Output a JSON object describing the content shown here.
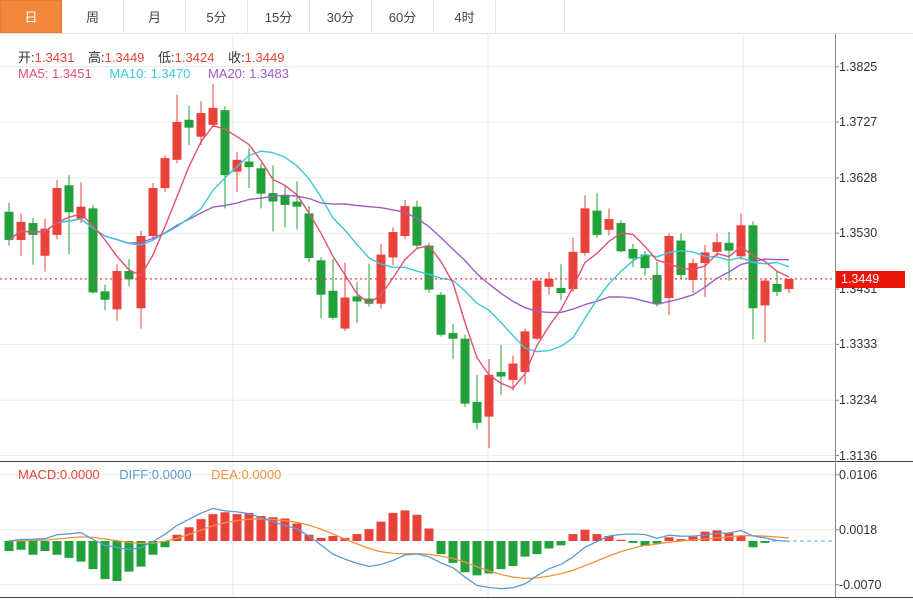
{
  "tabs": {
    "items": [
      {
        "label": "日",
        "selected": true
      },
      {
        "label": "周",
        "selected": false
      },
      {
        "label": "月",
        "selected": false
      },
      {
        "label": "5分",
        "selected": false
      },
      {
        "label": "15分",
        "selected": false
      },
      {
        "label": "30分",
        "selected": false
      },
      {
        "label": "60分",
        "selected": false
      },
      {
        "label": "4时",
        "selected": false
      }
    ]
  },
  "legend_ohlc": {
    "open_label": "开:",
    "open": "1.3431",
    "high_label": "高:",
    "high": "1.3449",
    "low_label": "低:",
    "low": "1.3424",
    "close_label": "收:",
    "close": "1.3449"
  },
  "legend_ma": {
    "ma5_label": "MA5:",
    "ma5": "1.3451",
    "ma10_label": "MA10:",
    "ma10": "1.3470",
    "ma20_label": "MA20:",
    "ma20": "1.3483"
  },
  "legend_macd": {
    "macd_label": "MACD:",
    "macd": "0.0000",
    "diff_label": "DIFF:",
    "diff": "0.0000",
    "dea_label": "DEA:",
    "dea": "0.0000"
  },
  "price_axis": {
    "last_price": "1.3449"
  },
  "colors": {
    "up_red": "#e8423a",
    "down_green": "#22a13b",
    "tab_orange": "#f0873c",
    "price_box_bg": "#e81508",
    "price_dotted_line": "#f23c46",
    "ma5": "#e25170",
    "ma10": "#3fc6d8",
    "ma20": "#a05cc5",
    "diff_blue": "#5b9bd5",
    "dea_orange": "#f0923f",
    "grid": "#ececec",
    "axis_text": "#333333"
  },
  "chart_data": {
    "type": "candlestick",
    "title": "Daily candlestick chart with MA5/MA10/MA20 overlays and MACD sub-panel",
    "legend_position": "top-left",
    "grid": true,
    "price_panel": {
      "ylabel": "price",
      "y_ticks": [
        1.3825,
        1.3727,
        1.3628,
        1.353,
        1.3431,
        1.3333,
        1.3234,
        1.3136
      ],
      "ylim": [
        1.311,
        1.388
      ],
      "last_price": 1.3449,
      "open": 1.3431,
      "high": 1.3449,
      "low": 1.3424,
      "close": 1.3449,
      "candles_ohlc": [
        [
          1.3568,
          1.3584,
          1.3508,
          1.3518
        ],
        [
          1.3518,
          1.3565,
          1.349,
          1.355
        ],
        [
          1.3548,
          1.3557,
          1.3474,
          1.3527
        ],
        [
          1.349,
          1.3556,
          1.3462,
          1.3538
        ],
        [
          1.3527,
          1.3624,
          1.3519,
          1.361
        ],
        [
          1.3615,
          1.3633,
          1.3493,
          1.3567
        ],
        [
          1.3556,
          1.362,
          1.3548,
          1.3577
        ],
        [
          1.3574,
          1.358,
          1.3423,
          1.3425
        ],
        [
          1.3427,
          1.3439,
          1.3394,
          1.3412
        ],
        [
          1.3395,
          1.3475,
          1.3375,
          1.3463
        ],
        [
          1.3463,
          1.3484,
          1.3436,
          1.3448
        ],
        [
          1.3397,
          1.3534,
          1.3361,
          1.3525
        ],
        [
          1.3525,
          1.3619,
          1.3519,
          1.361
        ],
        [
          1.361,
          1.3668,
          1.3603,
          1.3663
        ],
        [
          1.366,
          1.3775,
          1.3654,
          1.3727
        ],
        [
          1.3731,
          1.3756,
          1.3686,
          1.3717
        ],
        [
          1.3701,
          1.3764,
          1.3686,
          1.3743
        ],
        [
          1.3722,
          1.3794,
          1.3718,
          1.3752
        ],
        [
          1.3748,
          1.3755,
          1.3574,
          1.3633
        ],
        [
          1.3639,
          1.3674,
          1.3603,
          1.366
        ],
        [
          1.3657,
          1.3681,
          1.361,
          1.3647
        ],
        [
          1.3645,
          1.3654,
          1.3574,
          1.36
        ],
        [
          1.3601,
          1.365,
          1.3533,
          1.3586
        ],
        [
          1.3596,
          1.3615,
          1.354,
          1.358
        ],
        [
          1.3586,
          1.3622,
          1.3536,
          1.3577
        ],
        [
          1.3565,
          1.3578,
          1.3479,
          1.3486
        ],
        [
          1.3482,
          1.3487,
          1.3379,
          1.3421
        ],
        [
          1.3428,
          1.3484,
          1.3377,
          1.338
        ],
        [
          1.3361,
          1.3478,
          1.3357,
          1.3416
        ],
        [
          1.3418,
          1.3444,
          1.3371,
          1.3409
        ],
        [
          1.3414,
          1.3476,
          1.34,
          1.3405
        ],
        [
          1.3405,
          1.3511,
          1.3396,
          1.3492
        ],
        [
          1.3487,
          1.354,
          1.3473,
          1.3532
        ],
        [
          1.3525,
          1.3589,
          1.352,
          1.3578
        ],
        [
          1.3577,
          1.3588,
          1.3503,
          1.3508
        ],
        [
          1.3508,
          1.3513,
          1.3424,
          1.343
        ],
        [
          1.3421,
          1.3426,
          1.3347,
          1.335
        ],
        [
          1.3353,
          1.3369,
          1.3307,
          1.3343
        ],
        [
          1.3343,
          1.335,
          1.3222,
          1.3228
        ],
        [
          1.3231,
          1.3279,
          1.3183,
          1.3194
        ],
        [
          1.3205,
          1.3307,
          1.3149,
          1.3279
        ],
        [
          1.3284,
          1.3332,
          1.3243,
          1.3276
        ],
        [
          1.327,
          1.3313,
          1.3251,
          1.3299
        ],
        [
          1.3284,
          1.3361,
          1.3262,
          1.3356
        ],
        [
          1.3343,
          1.3451,
          1.3341,
          1.3446
        ],
        [
          1.3435,
          1.3461,
          1.3421,
          1.3449
        ],
        [
          1.3433,
          1.3475,
          1.3412,
          1.3424
        ],
        [
          1.3431,
          1.3522,
          1.3426,
          1.3497
        ],
        [
          1.3495,
          1.3597,
          1.349,
          1.3574
        ],
        [
          1.357,
          1.3601,
          1.3522,
          1.3527
        ],
        [
          1.3536,
          1.3574,
          1.3526,
          1.3555
        ],
        [
          1.3548,
          1.3553,
          1.3496,
          1.3498
        ],
        [
          1.3502,
          1.3511,
          1.347,
          1.3485
        ],
        [
          1.3492,
          1.3498,
          1.3455,
          1.3468
        ],
        [
          1.3456,
          1.3479,
          1.34,
          1.3404
        ],
        [
          1.3415,
          1.353,
          1.3385,
          1.3525
        ],
        [
          1.3517,
          1.353,
          1.3448,
          1.3456
        ],
        [
          1.3447,
          1.3485,
          1.3424,
          1.3477
        ],
        [
          1.3477,
          1.3509,
          1.3417,
          1.3496
        ],
        [
          1.3497,
          1.353,
          1.3489,
          1.3514
        ],
        [
          1.3513,
          1.3532,
          1.3446,
          1.3499
        ],
        [
          1.3489,
          1.3565,
          1.3483,
          1.3544
        ],
        [
          1.3544,
          1.3551,
          1.3342,
          1.3397
        ],
        [
          1.3402,
          1.345,
          1.3337,
          1.3446
        ],
        [
          1.344,
          1.3462,
          1.3419,
          1.3426
        ],
        [
          1.3431,
          1.3449,
          1.3424,
          1.3449
        ]
      ],
      "moving_averages": [
        {
          "name": "MA5",
          "period": 5,
          "value": 1.3451,
          "color": "#e25170"
        },
        {
          "name": "MA10",
          "period": 10,
          "value": 1.347,
          "color": "#3fc6d8"
        },
        {
          "name": "MA20",
          "period": 20,
          "value": 1.3483,
          "color": "#a05cc5"
        }
      ]
    },
    "macd_panel": {
      "ylabel": "MACD",
      "y_ticks": [
        0.0106,
        0.0018,
        -0.007
      ],
      "ylim": [
        -0.009,
        0.0125
      ],
      "histogram": [
        -0.0016,
        -0.0014,
        -0.0022,
        -0.0016,
        -0.0022,
        -0.0027,
        -0.0033,
        -0.0045,
        -0.0061,
        -0.0064,
        -0.0049,
        -0.0041,
        -0.0022,
        -0.001,
        0.001,
        0.0022,
        0.0035,
        0.0043,
        0.0046,
        0.0043,
        0.0045,
        0.004,
        0.0038,
        0.0036,
        0.0028,
        0.001,
        0.0005,
        0.0008,
        0.0005,
        0.0011,
        0.0019,
        0.0031,
        0.0045,
        0.0049,
        0.0042,
        0.002,
        -0.0021,
        -0.0035,
        -0.005,
        -0.0055,
        -0.0052,
        -0.0045,
        -0.004,
        -0.0025,
        -0.0021,
        -0.0012,
        -0.0007,
        0.0011,
        0.0018,
        0.0011,
        0.0008,
        0.0002,
        -0.0003,
        -0.0008,
        -0.0004,
        0.0006,
        0.0003,
        0.0007,
        0.0015,
        0.0017,
        0.0013,
        0.0008,
        -0.001,
        -0.0003,
        0.0,
        0.0
      ],
      "lines": [
        {
          "name": "DIFF",
          "value": 0.0,
          "color": "#5b9bd5"
        },
        {
          "name": "DEA",
          "value": 0.0,
          "color": "#f0923f"
        }
      ]
    }
  }
}
